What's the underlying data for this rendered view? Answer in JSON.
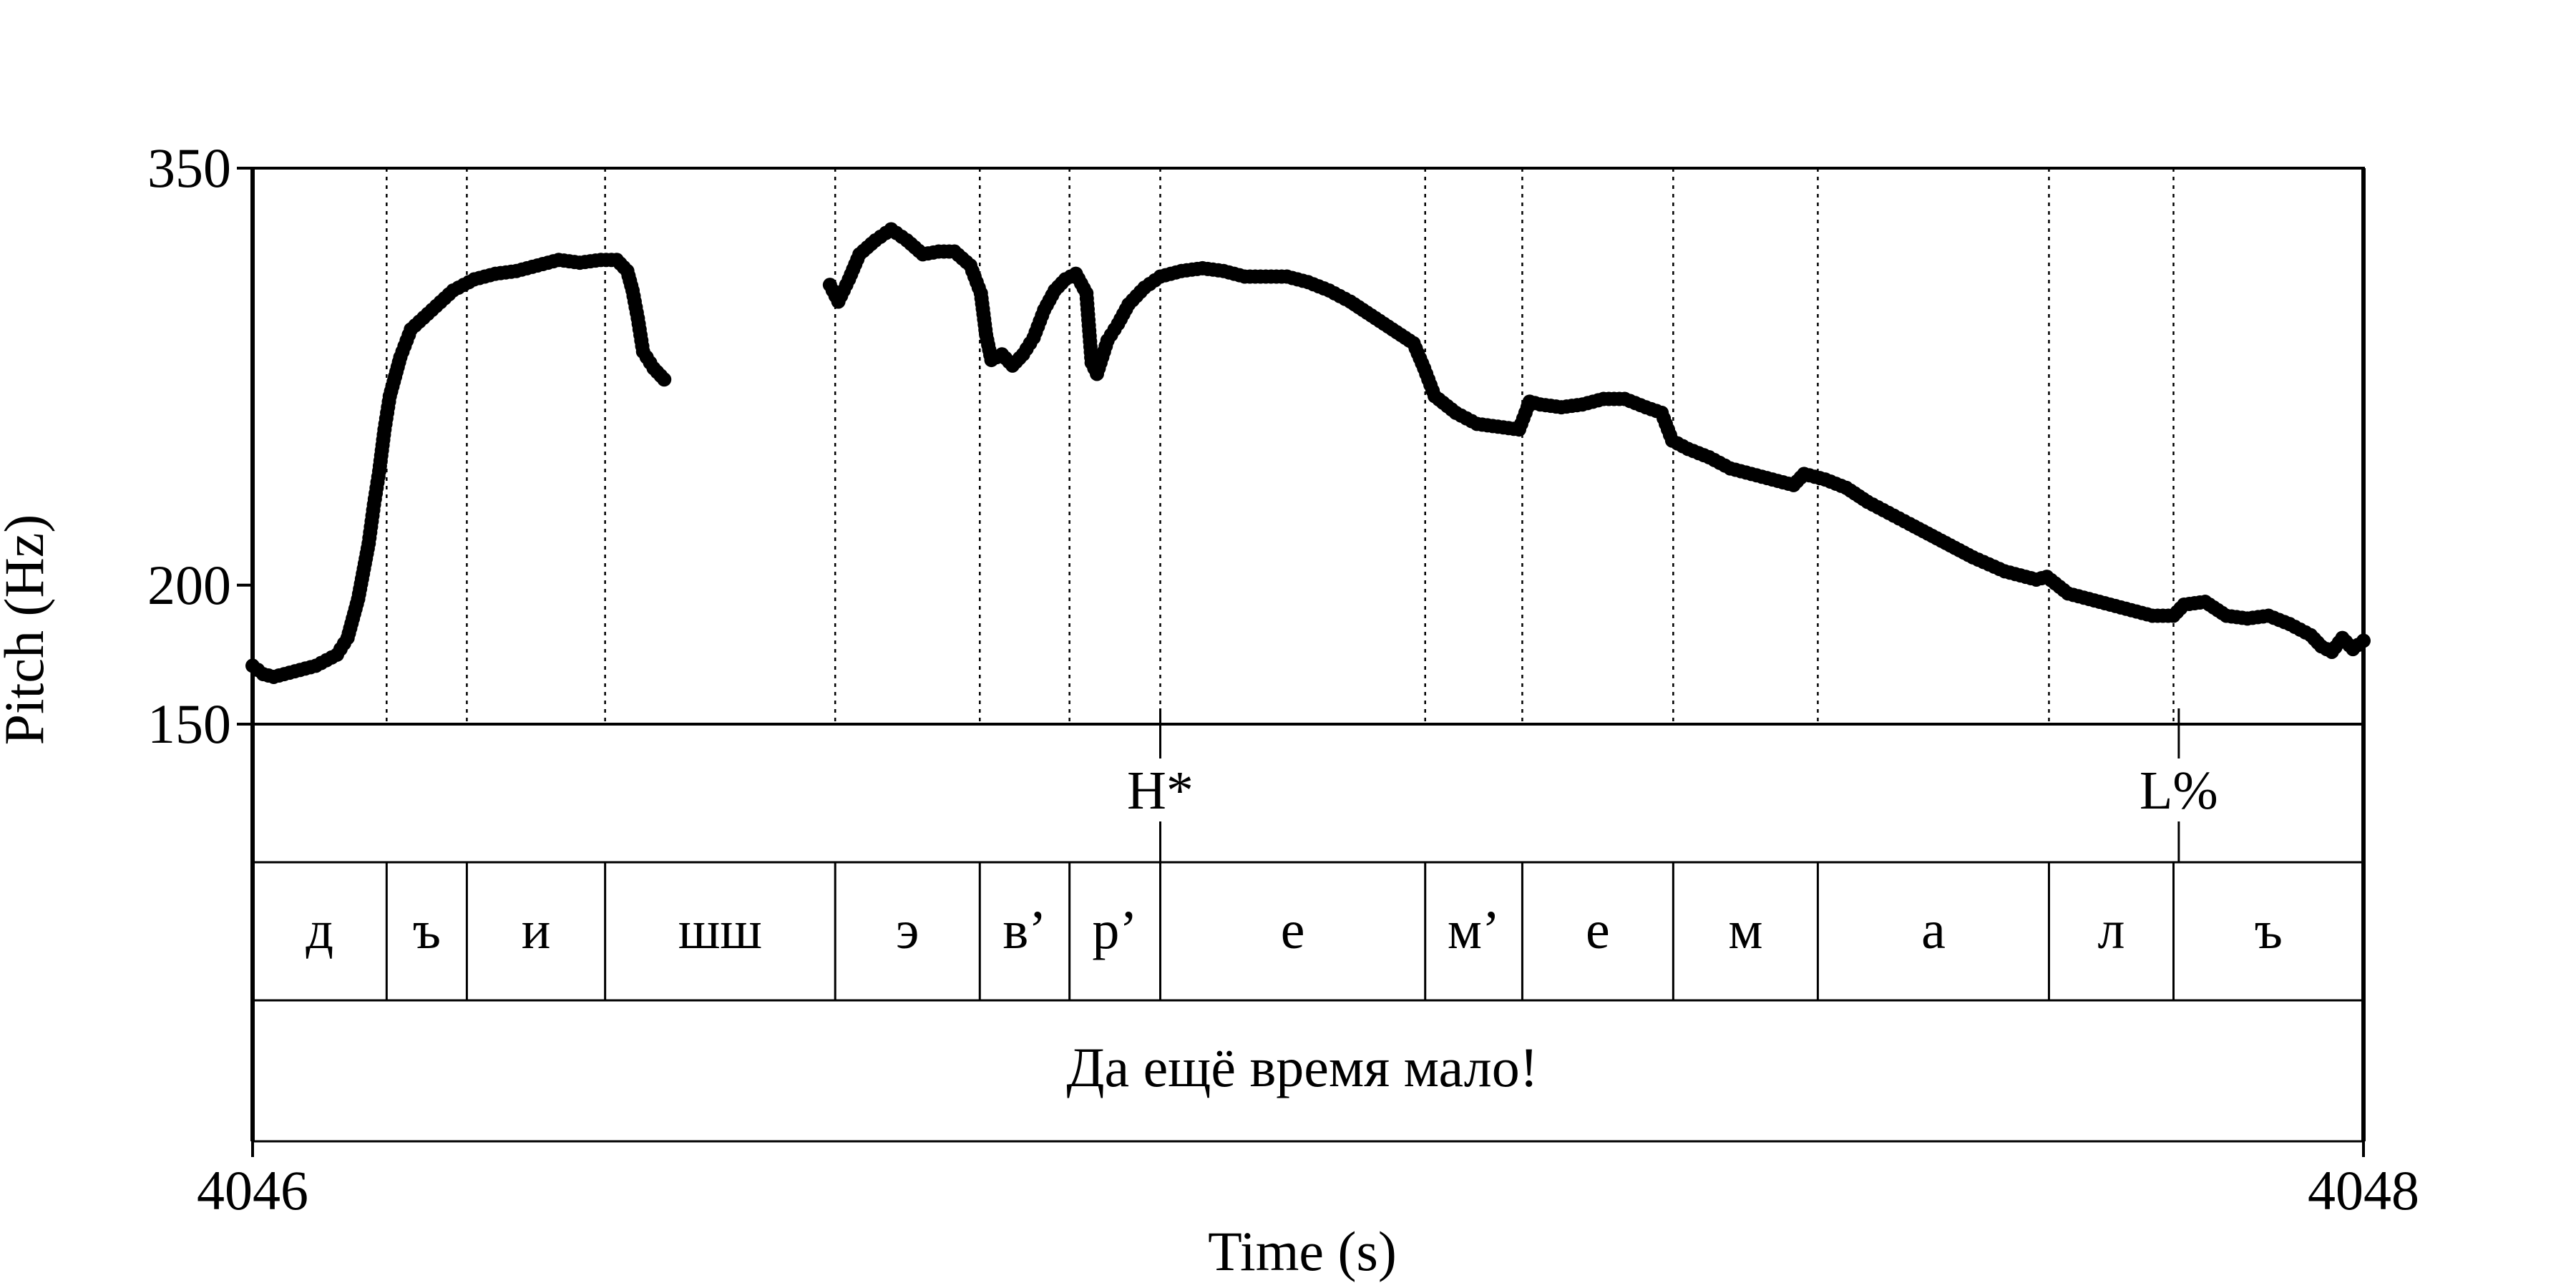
{
  "chart_data": {
    "type": "scatter",
    "xlabel": "Time (s)",
    "ylabel": "Pitch (Hz)",
    "xlim": [
      4046,
      4048
    ],
    "ylim": [
      150,
      350
    ],
    "x_ticks": [
      "4046",
      "4048"
    ],
    "y_ticks": [
      {
        "value": 350,
        "label": "350"
      },
      {
        "value": 200,
        "label": "200"
      },
      {
        "value": 150,
        "label": "150"
      }
    ],
    "grid": false,
    "tones": [
      {
        "t": 4046.86,
        "label": "H*"
      },
      {
        "t": 4047.825,
        "label": "L%"
      }
    ],
    "segments": [
      {
        "start": 4046.0,
        "end": 4046.127,
        "label": "д"
      },
      {
        "start": 4046.127,
        "end": 4046.203,
        "label": "ъ"
      },
      {
        "start": 4046.203,
        "end": 4046.334,
        "label": "и"
      },
      {
        "start": 4046.334,
        "end": 4046.552,
        "label": "шш"
      },
      {
        "start": 4046.552,
        "end": 4046.689,
        "label": "э"
      },
      {
        "start": 4046.689,
        "end": 4046.774,
        "label": "в’"
      },
      {
        "start": 4046.774,
        "end": 4046.86,
        "label": "р’"
      },
      {
        "start": 4046.86,
        "end": 4047.111,
        "label": "е"
      },
      {
        "start": 4047.111,
        "end": 4047.203,
        "label": "м’"
      },
      {
        "start": 4047.203,
        "end": 4047.346,
        "label": "е"
      },
      {
        "start": 4047.346,
        "end": 4047.483,
        "label": "м"
      },
      {
        "start": 4047.483,
        "end": 4047.702,
        "label": "а"
      },
      {
        "start": 4047.702,
        "end": 4047.82,
        "label": "л"
      },
      {
        "start": 4047.82,
        "end": 4048.0,
        "label": "ъ"
      }
    ],
    "sentence": "Да ещё время мало!",
    "series": [
      {
        "values": [
          [
            4046.0,
            171
          ],
          [
            4046.01,
            168
          ],
          [
            4046.02,
            167
          ],
          [
            4046.03,
            168
          ],
          [
            4046.04,
            169
          ],
          [
            4046.05,
            170
          ],
          [
            4046.06,
            171
          ],
          [
            4046.07,
            173
          ],
          [
            4046.08,
            175
          ],
          [
            4046.09,
            181
          ],
          [
            4046.1,
            195
          ],
          [
            4046.11,
            215
          ],
          [
            4046.115,
            229
          ],
          [
            4046.12,
            241
          ],
          [
            4046.125,
            256
          ],
          [
            4046.13,
            268
          ],
          [
            4046.14,
            282
          ],
          [
            4046.15,
            292
          ],
          [
            4046.17,
            299
          ],
          [
            4046.19,
            306
          ],
          [
            4046.21,
            310
          ],
          [
            4046.23,
            312
          ],
          [
            4046.25,
            313
          ],
          [
            4046.27,
            315
          ],
          [
            4046.29,
            317
          ],
          [
            4046.31,
            316
          ],
          [
            4046.33,
            317
          ],
          [
            4046.345,
            317
          ],
          [
            4046.355,
            313
          ],
          [
            4046.36,
            306
          ],
          [
            4046.365,
            296
          ],
          [
            4046.37,
            284
          ],
          [
            4046.38,
            278
          ],
          [
            4046.39,
            274
          ],
          [
            4046.547,
            308
          ],
          [
            4046.555,
            302
          ],
          [
            4046.565,
            310
          ],
          [
            4046.575,
            319
          ],
          [
            4046.59,
            324
          ],
          [
            4046.605,
            328
          ],
          [
            4046.62,
            324
          ],
          [
            4046.635,
            319
          ],
          [
            4046.65,
            320
          ],
          [
            4046.665,
            320
          ],
          [
            4046.68,
            315
          ],
          [
            4046.69,
            305
          ],
          [
            4046.695,
            290
          ],
          [
            4046.7,
            281
          ],
          [
            4046.71,
            283
          ],
          [
            4046.72,
            279
          ],
          [
            4046.73,
            283
          ],
          [
            4046.74,
            289
          ],
          [
            4046.75,
            299
          ],
          [
            4046.76,
            306
          ],
          [
            4046.77,
            310
          ],
          [
            4046.78,
            312
          ],
          [
            4046.79,
            305
          ],
          [
            4046.795,
            280
          ],
          [
            4046.8,
            276
          ],
          [
            4046.81,
            288
          ],
          [
            4046.82,
            294
          ],
          [
            4046.83,
            301
          ],
          [
            4046.845,
            307
          ],
          [
            4046.86,
            311
          ],
          [
            4046.88,
            313
          ],
          [
            4046.9,
            314
          ],
          [
            4046.92,
            313
          ],
          [
            4046.94,
            311
          ],
          [
            4046.96,
            311
          ],
          [
            4046.98,
            311
          ],
          [
            4047.0,
            309
          ],
          [
            4047.02,
            306
          ],
          [
            4047.04,
            302
          ],
          [
            4047.06,
            297
          ],
          [
            4047.08,
            292
          ],
          [
            4047.1,
            287
          ],
          [
            4047.11,
            278
          ],
          [
            4047.12,
            268
          ],
          [
            4047.14,
            262
          ],
          [
            4047.16,
            258
          ],
          [
            4047.18,
            257
          ],
          [
            4047.2,
            256
          ],
          [
            4047.21,
            266
          ],
          [
            4047.22,
            265
          ],
          [
            4047.24,
            264
          ],
          [
            4047.26,
            265
          ],
          [
            4047.28,
            267
          ],
          [
            4047.3,
            267
          ],
          [
            4047.32,
            264
          ],
          [
            4047.335,
            262
          ],
          [
            4047.345,
            252
          ],
          [
            4047.36,
            249
          ],
          [
            4047.38,
            246
          ],
          [
            4047.4,
            242
          ],
          [
            4047.42,
            240
          ],
          [
            4047.44,
            238
          ],
          [
            4047.46,
            236
          ],
          [
            4047.47,
            240
          ],
          [
            4047.49,
            238
          ],
          [
            4047.51,
            235
          ],
          [
            4047.53,
            230
          ],
          [
            4047.55,
            226
          ],
          [
            4047.57,
            222
          ],
          [
            4047.6,
            216
          ],
          [
            4047.63,
            210
          ],
          [
            4047.66,
            205
          ],
          [
            4047.69,
            202
          ],
          [
            4047.7,
            203
          ],
          [
            4047.72,
            197
          ],
          [
            4047.75,
            194
          ],
          [
            4047.78,
            191
          ],
          [
            4047.8,
            189
          ],
          [
            4047.82,
            189
          ],
          [
            4047.83,
            193
          ],
          [
            4047.85,
            194
          ],
          [
            4047.87,
            189
          ],
          [
            4047.89,
            188
          ],
          [
            4047.91,
            189
          ],
          [
            4047.93,
            186
          ],
          [
            4047.95,
            182
          ],
          [
            4047.96,
            178
          ],
          [
            4047.97,
            176
          ],
          [
            4047.98,
            181
          ],
          [
            4047.99,
            177
          ],
          [
            4048.0,
            180
          ]
        ]
      }
    ]
  }
}
